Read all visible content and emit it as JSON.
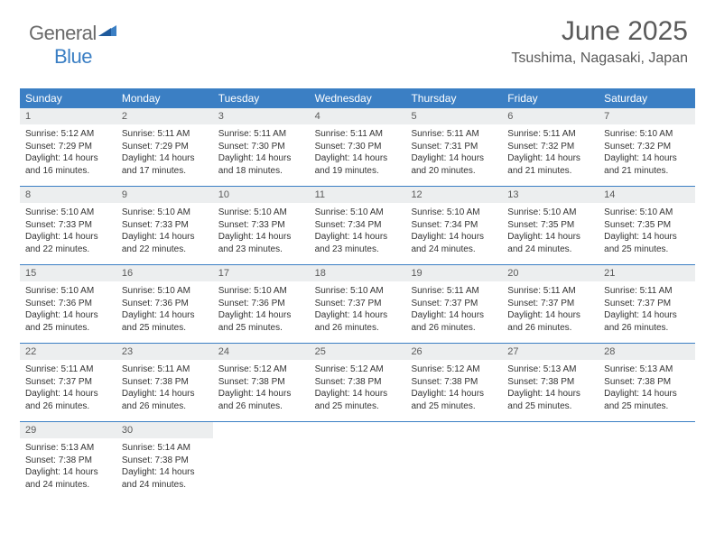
{
  "logo": {
    "word1": "General",
    "word2": "Blue"
  },
  "title": "June 2025",
  "location": "Tsushima, Nagasaki, Japan",
  "colors": {
    "header_bg": "#3b7fc4",
    "daynum_bg": "#eceeef",
    "text": "#333333",
    "title_text": "#5a5a5a",
    "logo_gray": "#6a6a6a",
    "logo_blue": "#3b7fc4"
  },
  "day_labels": [
    "Sunday",
    "Monday",
    "Tuesday",
    "Wednesday",
    "Thursday",
    "Friday",
    "Saturday"
  ],
  "days": [
    {
      "n": 1,
      "sr": "5:12 AM",
      "ss": "7:29 PM",
      "dh": 14,
      "dm": 16
    },
    {
      "n": 2,
      "sr": "5:11 AM",
      "ss": "7:29 PM",
      "dh": 14,
      "dm": 17
    },
    {
      "n": 3,
      "sr": "5:11 AM",
      "ss": "7:30 PM",
      "dh": 14,
      "dm": 18
    },
    {
      "n": 4,
      "sr": "5:11 AM",
      "ss": "7:30 PM",
      "dh": 14,
      "dm": 19
    },
    {
      "n": 5,
      "sr": "5:11 AM",
      "ss": "7:31 PM",
      "dh": 14,
      "dm": 20
    },
    {
      "n": 6,
      "sr": "5:11 AM",
      "ss": "7:32 PM",
      "dh": 14,
      "dm": 21
    },
    {
      "n": 7,
      "sr": "5:10 AM",
      "ss": "7:32 PM",
      "dh": 14,
      "dm": 21
    },
    {
      "n": 8,
      "sr": "5:10 AM",
      "ss": "7:33 PM",
      "dh": 14,
      "dm": 22
    },
    {
      "n": 9,
      "sr": "5:10 AM",
      "ss": "7:33 PM",
      "dh": 14,
      "dm": 22
    },
    {
      "n": 10,
      "sr": "5:10 AM",
      "ss": "7:33 PM",
      "dh": 14,
      "dm": 23
    },
    {
      "n": 11,
      "sr": "5:10 AM",
      "ss": "7:34 PM",
      "dh": 14,
      "dm": 23
    },
    {
      "n": 12,
      "sr": "5:10 AM",
      "ss": "7:34 PM",
      "dh": 14,
      "dm": 24
    },
    {
      "n": 13,
      "sr": "5:10 AM",
      "ss": "7:35 PM",
      "dh": 14,
      "dm": 24
    },
    {
      "n": 14,
      "sr": "5:10 AM",
      "ss": "7:35 PM",
      "dh": 14,
      "dm": 25
    },
    {
      "n": 15,
      "sr": "5:10 AM",
      "ss": "7:36 PM",
      "dh": 14,
      "dm": 25
    },
    {
      "n": 16,
      "sr": "5:10 AM",
      "ss": "7:36 PM",
      "dh": 14,
      "dm": 25
    },
    {
      "n": 17,
      "sr": "5:10 AM",
      "ss": "7:36 PM",
      "dh": 14,
      "dm": 25
    },
    {
      "n": 18,
      "sr": "5:10 AM",
      "ss": "7:37 PM",
      "dh": 14,
      "dm": 26
    },
    {
      "n": 19,
      "sr": "5:11 AM",
      "ss": "7:37 PM",
      "dh": 14,
      "dm": 26
    },
    {
      "n": 20,
      "sr": "5:11 AM",
      "ss": "7:37 PM",
      "dh": 14,
      "dm": 26
    },
    {
      "n": 21,
      "sr": "5:11 AM",
      "ss": "7:37 PM",
      "dh": 14,
      "dm": 26
    },
    {
      "n": 22,
      "sr": "5:11 AM",
      "ss": "7:37 PM",
      "dh": 14,
      "dm": 26
    },
    {
      "n": 23,
      "sr": "5:11 AM",
      "ss": "7:38 PM",
      "dh": 14,
      "dm": 26
    },
    {
      "n": 24,
      "sr": "5:12 AM",
      "ss": "7:38 PM",
      "dh": 14,
      "dm": 26
    },
    {
      "n": 25,
      "sr": "5:12 AM",
      "ss": "7:38 PM",
      "dh": 14,
      "dm": 25
    },
    {
      "n": 26,
      "sr": "5:12 AM",
      "ss": "7:38 PM",
      "dh": 14,
      "dm": 25
    },
    {
      "n": 27,
      "sr": "5:13 AM",
      "ss": "7:38 PM",
      "dh": 14,
      "dm": 25
    },
    {
      "n": 28,
      "sr": "5:13 AM",
      "ss": "7:38 PM",
      "dh": 14,
      "dm": 25
    },
    {
      "n": 29,
      "sr": "5:13 AM",
      "ss": "7:38 PM",
      "dh": 14,
      "dm": 24
    },
    {
      "n": 30,
      "sr": "5:14 AM",
      "ss": "7:38 PM",
      "dh": 14,
      "dm": 24
    }
  ],
  "labels": {
    "sunrise": "Sunrise:",
    "sunset": "Sunset:",
    "daylight_prefix": "Daylight:",
    "hours_word": "hours",
    "and_word": "and",
    "minutes_word": "minutes."
  },
  "layout": {
    "start_weekday": 0,
    "total_cells": 35
  }
}
